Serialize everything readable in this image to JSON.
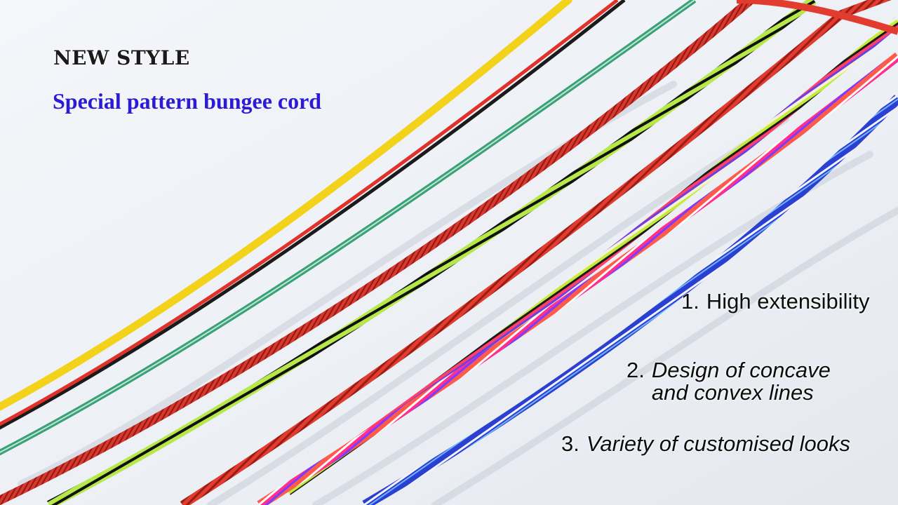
{
  "photo": {
    "subject": "bungee-cords",
    "background_color": "#eef1f5",
    "cord_colors": [
      "#f2d21a",
      "#e0322a",
      "#1b1b1b",
      "#3aa077",
      "#d8382e",
      "#b7e84a",
      "#ff3f6a",
      "#2b3fd0"
    ]
  },
  "headline": "NEW STYLE",
  "subheadline": "Special pattern bungee cord",
  "features": [
    {
      "number": "1.",
      "text": "High extensibility"
    },
    {
      "number": "2.",
      "text": "Design of concave and convex lines"
    },
    {
      "number": "3.",
      "text": "Variety of customised looks"
    }
  ]
}
